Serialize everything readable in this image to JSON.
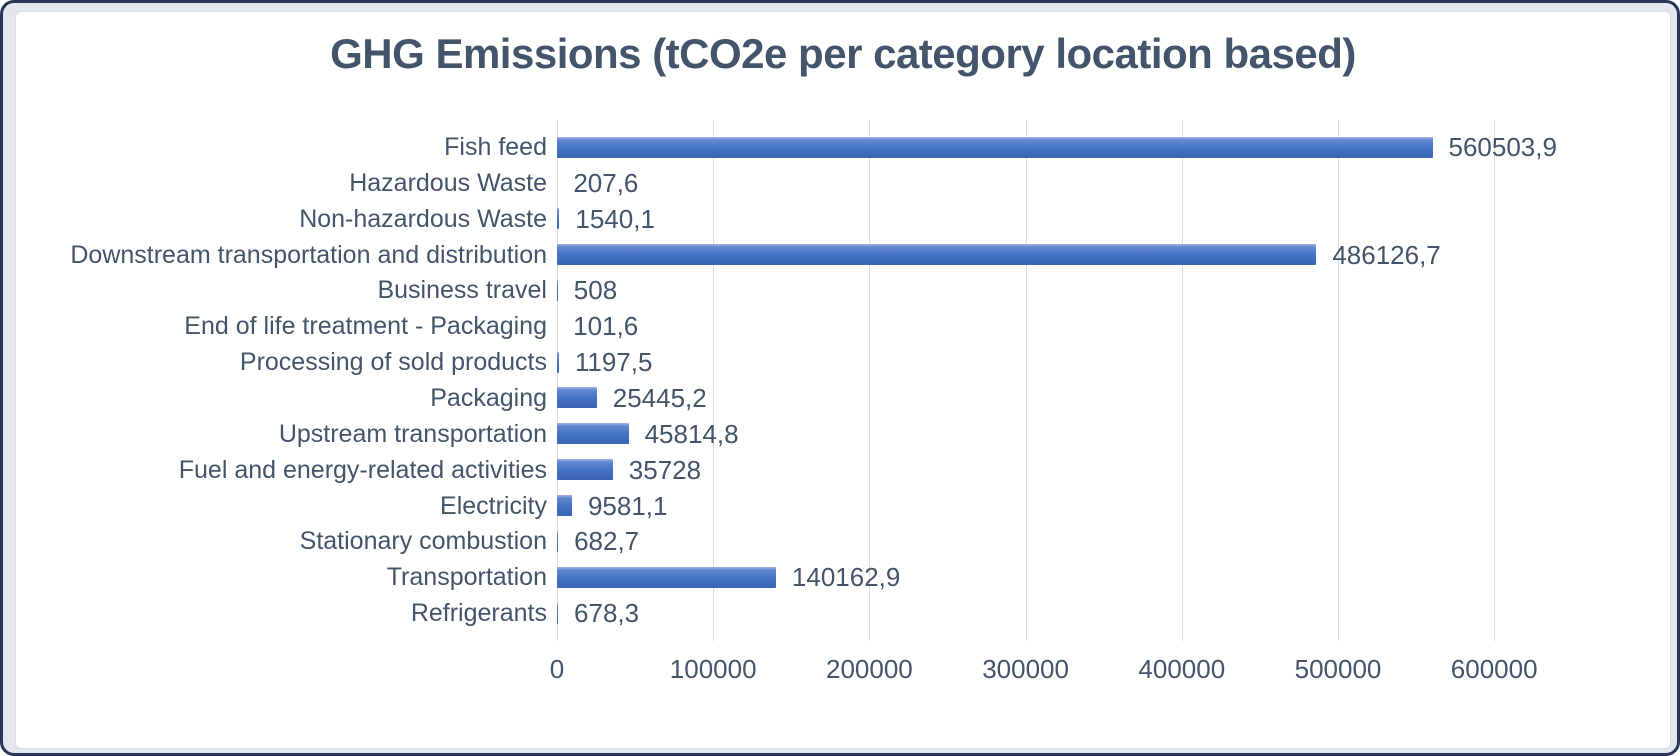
{
  "frame": {
    "outer_border_color": "#27375A",
    "margin_background": "#E3E8ED",
    "panel_background": "#FFFFFF",
    "panel_border_color": "#D8DEE4"
  },
  "chart_data": {
    "type": "bar",
    "orientation": "horizontal",
    "title": "GHG Emissions (tCO2e per category location based)",
    "categories": [
      "Fish feed",
      "Hazardous Waste",
      "Non-hazardous Waste",
      "Downstream transportation and distribution",
      "Business travel",
      "End of life treatment - Packaging",
      "Processing of sold products",
      "Packaging",
      "Upstream transportation",
      "Fuel and energy-related activities",
      "Electricity",
      "Stationary combustion",
      "Transportation",
      "Refrigerants"
    ],
    "values": [
      560503.9,
      207.6,
      1540.1,
      486126.7,
      508,
      101.6,
      1197.5,
      25445.2,
      45814.8,
      35728,
      9581.1,
      682.7,
      140162.9,
      678.3
    ],
    "value_labels": [
      "560503,9",
      "207,6",
      "1540,1",
      "486126,7",
      "508",
      "101,6",
      "1197,5",
      "25445,2",
      "45814,8",
      "35728",
      "9581,1",
      "682,7",
      "140162,9",
      "678,3"
    ],
    "xlabel": "",
    "ylabel": "",
    "xlim": [
      0,
      600000
    ],
    "xticks": [
      0,
      100000,
      200000,
      300000,
      400000,
      500000,
      600000
    ],
    "xtick_labels": [
      "0",
      "100000",
      "200000",
      "300000",
      "400000",
      "500000",
      "600000"
    ],
    "grid": "vertical-only",
    "legend_position": "none",
    "data_labels": "outside-end",
    "colors": {
      "bar": "#4472C4",
      "bar_gradient_top": "#9FB4DF",
      "bar_gradient_bottom": "#3A64B4",
      "text": "#44546A",
      "gridline": "#D9DDE3"
    }
  }
}
